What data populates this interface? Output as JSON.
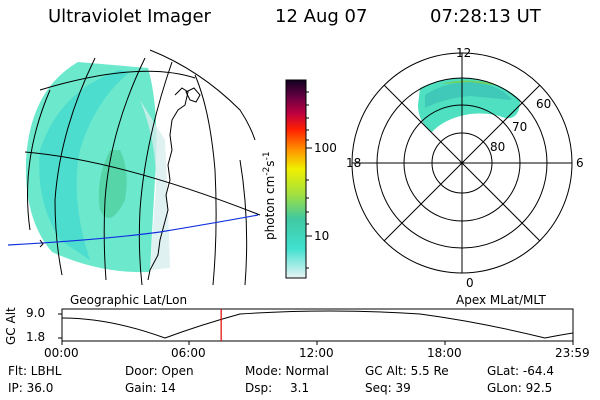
{
  "header": {
    "title": "Ultraviolet Imager",
    "date": "12 Aug 07",
    "time": "07:28:13 UT"
  },
  "colorbar": {
    "ticks": [
      "100",
      "10"
    ],
    "unit_main": "photon cm",
    "unit_exp1": "-2",
    "unit_s": "s",
    "unit_exp2": "-1"
  },
  "polar": {
    "labels": {
      "top": "12",
      "left": "18",
      "right": "6",
      "bottom": "0"
    },
    "rings": [
      "60",
      "70",
      "80"
    ]
  },
  "panel_labels": {
    "left": "Geographic Lat/Lon",
    "right": "Apex MLat/MLT"
  },
  "altitude_plot": {
    "ylabel": "GC Alt",
    "yticks": [
      "9.0",
      "1.8"
    ],
    "xticks": [
      "00:00",
      "06:00",
      "12:00",
      "18:00",
      "23:59"
    ],
    "marker_time_hours": 7.47
  },
  "info": {
    "flt": "Flt: LBHL",
    "ip": "IP: 36.0",
    "door": "Door: Open",
    "gain": "Gain: 14",
    "mode": "Mode: Normal",
    "dsp": "Dsp:",
    "dsp_val": "3.1",
    "gcalt": "GC Alt: 5.5 Re",
    "seq": "Seq: 39",
    "glat": "GLat: -64.4",
    "glon": "GLon:  92.5"
  }
}
